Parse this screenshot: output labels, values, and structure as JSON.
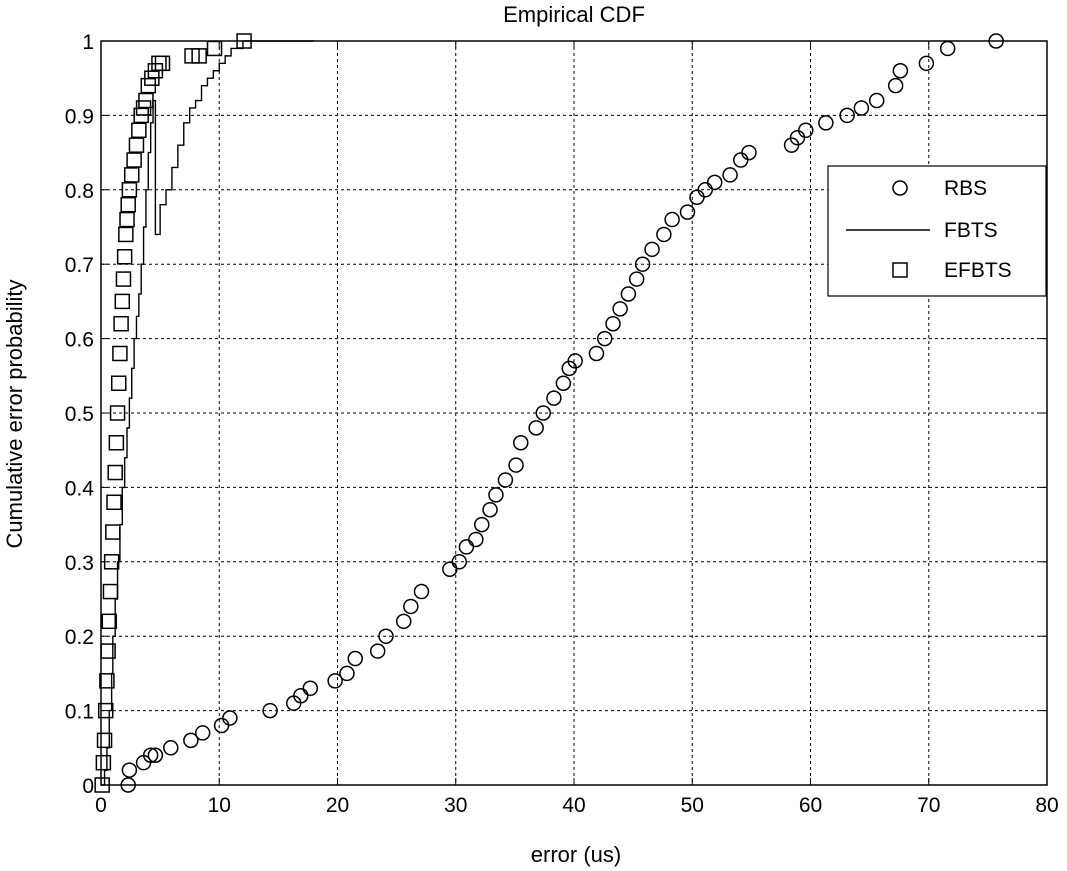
{
  "chart_data": {
    "type": "scatter",
    "title": "Empirical CDF",
    "xlabel": "error (us)",
    "ylabel": "Cumulative error probability",
    "xlim": [
      0,
      80
    ],
    "ylim": [
      0,
      1
    ],
    "xticks": [
      0,
      10,
      20,
      30,
      40,
      50,
      60,
      70,
      80
    ],
    "yticks": [
      0,
      0.1,
      0.2,
      0.3,
      0.4,
      0.5,
      0.6,
      0.7,
      0.8,
      0.9,
      1
    ],
    "xtick_labels": [
      "0",
      "10",
      "20",
      "30",
      "40",
      "50",
      "60",
      "70",
      "80"
    ],
    "ytick_labels": [
      "0",
      "0.1",
      "0.2",
      "0.3",
      "0.4",
      "0.5",
      "0.6",
      "0.7",
      "0.8",
      "0.9",
      "1"
    ],
    "grid": true,
    "legend_position": "top-right",
    "series": [
      {
        "name": "RBS",
        "marker": "circle",
        "color": "#000000",
        "x": [
          2.3,
          2.4,
          3.6,
          4.2,
          4.6,
          5.9,
          7.6,
          8.6,
          10.2,
          10.9,
          14.3,
          16.3,
          16.9,
          17.7,
          19.8,
          20.8,
          21.5,
          23.4,
          24.1,
          25.6,
          26.2,
          27.1,
          29.5,
          30.3,
          30.9,
          31.7,
          32.2,
          32.9,
          33.4,
          34.2,
          35.1,
          35.5,
          36.8,
          37.4,
          38.3,
          39.1,
          39.6,
          40.1,
          41.9,
          42.6,
          43.3,
          43.9,
          44.6,
          45.3,
          45.8,
          46.6,
          47.6,
          48.3,
          49.6,
          50.4,
          51.1,
          51.9,
          53.2,
          54.1,
          54.8,
          58.4,
          58.9,
          59.6,
          61.3,
          63.1,
          64.3,
          65.6,
          67.2,
          67.6,
          69.8,
          71.6,
          75.7
        ],
        "y": [
          0.0,
          0.02,
          0.03,
          0.04,
          0.04,
          0.05,
          0.06,
          0.07,
          0.08,
          0.09,
          0.1,
          0.11,
          0.12,
          0.13,
          0.14,
          0.15,
          0.17,
          0.18,
          0.2,
          0.22,
          0.24,
          0.26,
          0.29,
          0.3,
          0.32,
          0.33,
          0.35,
          0.37,
          0.39,
          0.41,
          0.43,
          0.46,
          0.48,
          0.5,
          0.52,
          0.54,
          0.56,
          0.57,
          0.58,
          0.6,
          0.62,
          0.64,
          0.66,
          0.68,
          0.7,
          0.72,
          0.74,
          0.76,
          0.77,
          0.79,
          0.8,
          0.81,
          0.82,
          0.84,
          0.85,
          0.86,
          0.87,
          0.88,
          0.89,
          0.9,
          0.91,
          0.92,
          0.94,
          0.96,
          0.97,
          0.99,
          1.0
        ]
      },
      {
        "name": "FBTS",
        "marker": "line",
        "color": "#000000",
        "x": [
          0.0,
          0.3,
          0.5,
          0.7,
          0.9,
          1.0,
          1.2,
          1.4,
          1.6,
          1.8,
          2.0,
          2.2,
          2.4,
          2.6,
          2.8,
          3.0,
          3.2,
          3.4,
          3.6,
          3.8,
          4.0,
          4.2,
          4.4,
          4.6,
          5.0,
          5.5,
          6.0,
          6.5,
          7.0,
          7.5,
          8.0,
          8.5,
          9.0,
          9.5,
          10.0,
          10.5,
          11.0,
          11.5,
          12.0,
          13.0,
          15.0,
          18.0
        ],
        "y": [
          0.0,
          0.02,
          0.05,
          0.1,
          0.15,
          0.2,
          0.25,
          0.3,
          0.35,
          0.4,
          0.44,
          0.48,
          0.52,
          0.56,
          0.6,
          0.63,
          0.66,
          0.7,
          0.75,
          0.8,
          0.85,
          0.89,
          0.92,
          0.74,
          0.78,
          0.8,
          0.83,
          0.86,
          0.89,
          0.91,
          0.92,
          0.94,
          0.95,
          0.96,
          0.97,
          0.98,
          0.99,
          0.99,
          1.0,
          1.0,
          1.0,
          1.0
        ]
      },
      {
        "name": "EFBTS",
        "marker": "square",
        "color": "#000000",
        "x": [
          0.1,
          0.2,
          0.3,
          0.4,
          0.5,
          0.6,
          0.7,
          0.8,
          0.9,
          1.0,
          1.1,
          1.2,
          1.3,
          1.4,
          1.5,
          1.6,
          1.7,
          1.8,
          1.9,
          2.0,
          2.1,
          2.2,
          2.3,
          2.4,
          2.6,
          2.8,
          3.0,
          3.2,
          3.4,
          3.6,
          3.8,
          4.0,
          4.3,
          4.6,
          4.9,
          5.2,
          7.7,
          8.3,
          9.6,
          12.1
        ],
        "y": [
          0.0,
          0.03,
          0.06,
          0.1,
          0.14,
          0.18,
          0.22,
          0.26,
          0.3,
          0.34,
          0.38,
          0.42,
          0.46,
          0.5,
          0.54,
          0.58,
          0.62,
          0.65,
          0.68,
          0.71,
          0.74,
          0.76,
          0.78,
          0.8,
          0.82,
          0.84,
          0.86,
          0.88,
          0.9,
          0.91,
          0.92,
          0.94,
          0.95,
          0.96,
          0.97,
          0.97,
          0.98,
          0.98,
          0.99,
          1.0
        ]
      }
    ]
  }
}
